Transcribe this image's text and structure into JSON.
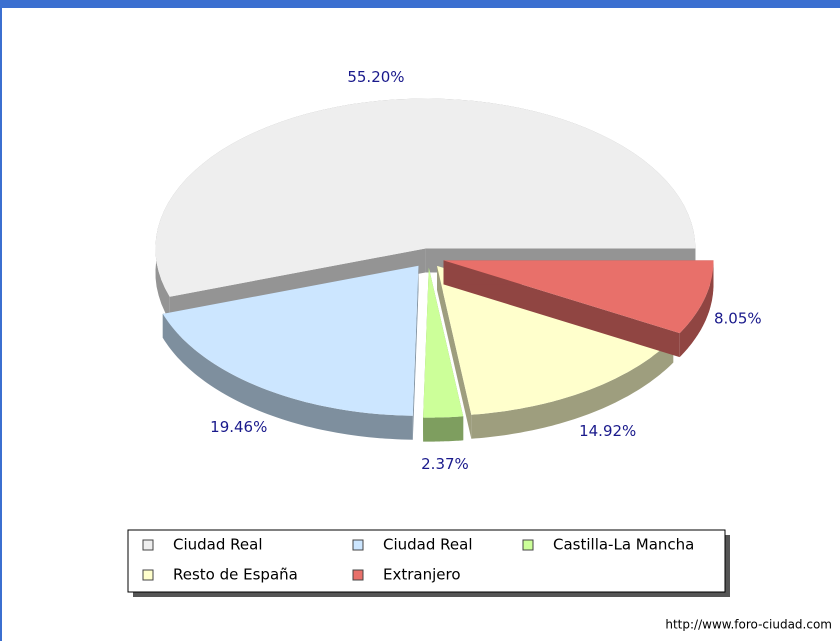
{
  "chart_data": {
    "type": "pie",
    "categories": [
      "Ciudad Real",
      "Ciudad Real",
      "Castilla-La Mancha",
      "Resto de España",
      "Extranjero"
    ],
    "values": [
      55.2,
      19.46,
      2.37,
      14.92,
      8.05
    ],
    "value_labels": [
      "55.20%",
      "19.46%",
      "2.37%",
      "14.92%",
      "8.05%"
    ],
    "colors": [
      "#eeeeee",
      "#cce6ff",
      "#ccff99",
      "#ffffcc",
      "#e8706a"
    ],
    "legend": "bottom"
  },
  "footer": "http://www.foro-ciudad.com"
}
